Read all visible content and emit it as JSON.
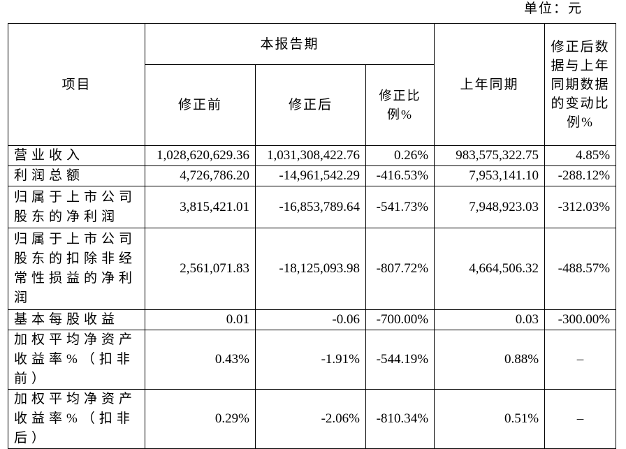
{
  "unit_label": "单位：元",
  "header": {
    "item": "项目",
    "current_period": "本报告期",
    "before_correction": "修正前",
    "after_correction": "修正后",
    "correction_ratio": "修正比例%",
    "last_year_same_period": "上年同期",
    "change_ratio": "修正后数据与上年同期数据的变动比例%"
  },
  "rows": [
    {
      "name": "营业收入",
      "before": "1,028,620,629.36",
      "after": "1,031,308,422.76",
      "ratio": "0.26%",
      "last_year": "983,575,322.75",
      "change": "4.85%"
    },
    {
      "name": "利润总额",
      "before": "4,726,786.20",
      "after": "-14,961,542.29",
      "ratio": "-416.53%",
      "last_year": "7,953,141.10",
      "change": "-288.12%"
    },
    {
      "name": "归属于上市公司股东的净利润",
      "before": "3,815,421.01",
      "after": "-16,853,789.64",
      "ratio": "-541.73%",
      "last_year": "7,948,923.03",
      "change": "-312.03%"
    },
    {
      "name": "归属于上市公司股东的扣除非经常性损益的净利润",
      "before": "2,561,071.83",
      "after": "-18,125,093.98",
      "ratio": "-807.72%",
      "last_year": "4,664,506.32",
      "change": "-488.57%"
    },
    {
      "name": "基本每股收益",
      "before": "0.01",
      "after": "-0.06",
      "ratio": "-700.00%",
      "last_year": "0.03",
      "change": "-300.00%"
    },
    {
      "name": "加权平均净资产收益率%（扣非前）",
      "before": "0.43%",
      "after": "-1.91%",
      "ratio": "-544.19%",
      "last_year": "0.88%",
      "change": "–"
    },
    {
      "name": "加权平均净资产收益率%（扣非后）",
      "before": "0.29%",
      "after": "-2.06%",
      "ratio": "-810.34%",
      "last_year": "0.51%",
      "change": "–"
    }
  ]
}
